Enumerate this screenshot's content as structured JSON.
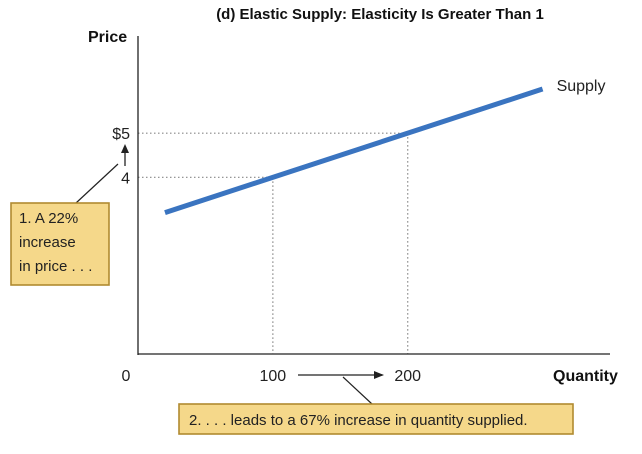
{
  "chart_data": {
    "type": "line",
    "title": "(d) Elastic Supply: Elasticity Is Greater Than 1",
    "ylabel": "Price",
    "xlabel": "Quantity",
    "origin_label": "0",
    "x_ticks": [
      "100",
      "200"
    ],
    "y_ticks": [
      "$5",
      "4"
    ],
    "series": [
      {
        "name": "Supply",
        "color": "#3a74c0",
        "x": [
          20,
          300
        ],
        "y": [
          3.2,
          6.0
        ]
      }
    ],
    "highlight_points": [
      {
        "x": 100,
        "y": 4
      },
      {
        "x": 200,
        "y": 5
      }
    ],
    "xlim": [
      0,
      350
    ],
    "ylim": [
      0,
      7.2
    ],
    "notes": {
      "price": [
        "1. A 22%",
        "increase",
        "in price . . ."
      ],
      "quantity": "2. . . . leads to a 67% increase in quantity supplied."
    },
    "note_fill": "#f5d88a",
    "note_border": "#b08a30"
  }
}
